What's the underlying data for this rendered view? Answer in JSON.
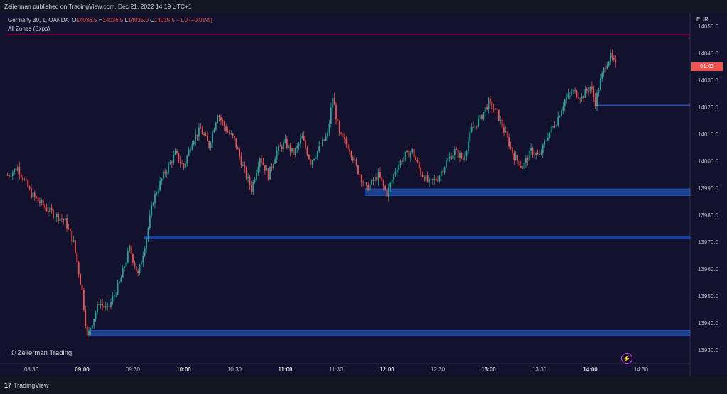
{
  "header": {
    "published": "Zeiierman published on TradingView.com, Dec 21, 2022 14:19 UTC+1"
  },
  "legend": {
    "symbol": "Germany 30, 1, OANDA",
    "o_label": "O",
    "o": "14036.5",
    "h_label": "H",
    "h": "14036.5",
    "l_label": "L",
    "l": "14035.0",
    "c_label": "C",
    "c": "14035.5",
    "change": "−1.0 (−0.01%)",
    "indicator": "All Zones (Expo)"
  },
  "watermark": "© Zeiierman Trading",
  "footer": {
    "brand": "TradingView"
  },
  "colors": {
    "bg": "#12122e",
    "up": "#26a69a",
    "down": "#ef5350",
    "zone": "#1e4a9a",
    "pink": "#c2185b"
  },
  "chart_data": {
    "type": "candlestick",
    "currency": "EUR",
    "ylim": [
      13927,
      14052
    ],
    "y_ticks": [
      "14050.0",
      "14040.0",
      "14030.0",
      "14020.0",
      "14010.0",
      "14000.0",
      "13990.0",
      "13980.0",
      "13970.0",
      "13960.0",
      "13950.0",
      "13940.0",
      "13930.0"
    ],
    "x_ticks": [
      {
        "label": "08:30",
        "major": false
      },
      {
        "label": "09:00",
        "major": true
      },
      {
        "label": "09:30",
        "major": false
      },
      {
        "label": "10:00",
        "major": true
      },
      {
        "label": "10:30",
        "major": false
      },
      {
        "label": "11:00",
        "major": true
      },
      {
        "label": "11:30",
        "major": false
      },
      {
        "label": "12:00",
        "major": true
      },
      {
        "label": "12:30",
        "major": false
      },
      {
        "label": "13:00",
        "major": true
      },
      {
        "label": "13:30",
        "major": false
      },
      {
        "label": "14:00",
        "major": true
      },
      {
        "label": "14:30",
        "major": false
      }
    ],
    "countdown": "01:03",
    "price_path": [
      [
        "08:16",
        13995
      ],
      [
        "08:22",
        13998
      ],
      [
        "08:30",
        13988
      ],
      [
        "08:40",
        13982
      ],
      [
        "08:50",
        13978
      ],
      [
        "08:55",
        13970
      ],
      [
        "09:00",
        13952
      ],
      [
        "09:03",
        13935
      ],
      [
        "09:10",
        13948
      ],
      [
        "09:15",
        13945
      ],
      [
        "09:22",
        13955
      ],
      [
        "09:28",
        13968
      ],
      [
        "09:33",
        13958
      ],
      [
        "09:38",
        13972
      ],
      [
        "09:42",
        13986
      ],
      [
        "09:48",
        13995
      ],
      [
        "09:55",
        14003
      ],
      [
        "10:00",
        13998
      ],
      [
        "10:05",
        14008
      ],
      [
        "10:10",
        14012
      ],
      [
        "10:15",
        14006
      ],
      [
        "10:20",
        14018
      ],
      [
        "10:25",
        14012
      ],
      [
        "10:30",
        14008
      ],
      [
        "10:35",
        13998
      ],
      [
        "10:40",
        13990
      ],
      [
        "10:45",
        14002
      ],
      [
        "10:50",
        13995
      ],
      [
        "10:55",
        14004
      ],
      [
        "11:00",
        14007
      ],
      [
        "11:05",
        14003
      ],
      [
        "11:10",
        14009
      ],
      [
        "11:15",
        14000
      ],
      [
        "11:20",
        14005
      ],
      [
        "11:25",
        14010
      ],
      [
        "11:28",
        14024
      ],
      [
        "11:32",
        14010
      ],
      [
        "11:38",
        14005
      ],
      [
        "11:42",
        13998
      ],
      [
        "11:48",
        13990
      ],
      [
        "11:55",
        13995
      ],
      [
        "12:00",
        13988
      ],
      [
        "12:05",
        13997
      ],
      [
        "12:10",
        14002
      ],
      [
        "12:15",
        14004
      ],
      [
        "12:20",
        13996
      ],
      [
        "12:25",
        13992
      ],
      [
        "12:30",
        13994
      ],
      [
        "12:35",
        14000
      ],
      [
        "12:40",
        14004
      ],
      [
        "12:45",
        14001
      ],
      [
        "12:50",
        14012
      ],
      [
        "12:55",
        14016
      ],
      [
        "13:00",
        14022
      ],
      [
        "13:05",
        14018
      ],
      [
        "13:10",
        14010
      ],
      [
        "13:15",
        14002
      ],
      [
        "13:20",
        13998
      ],
      [
        "13:25",
        14004
      ],
      [
        "13:30",
        14002
      ],
      [
        "13:35",
        14010
      ],
      [
        "13:40",
        14015
      ],
      [
        "13:45",
        14023
      ],
      [
        "13:50",
        14026
      ],
      [
        "13:55",
        14024
      ],
      [
        "14:00",
        14028
      ],
      [
        "14:03",
        14022
      ],
      [
        "14:06",
        14030
      ],
      [
        "14:09",
        14036
      ],
      [
        "14:12",
        14039
      ],
      [
        "14:15",
        14035.5
      ]
    ],
    "zones": [
      {
        "from": "11:47",
        "low": 13987.5,
        "high": 13990
      },
      {
        "from": "09:37",
        "low": 13971.5,
        "high": 13972.5
      },
      {
        "from": "09:05",
        "low": 13935.5,
        "high": 13937.5
      }
    ],
    "lines": [
      {
        "from": "14:03",
        "price": 14021
      },
      {
        "from": "08:15",
        "price": 14047,
        "color": "pink"
      }
    ]
  }
}
